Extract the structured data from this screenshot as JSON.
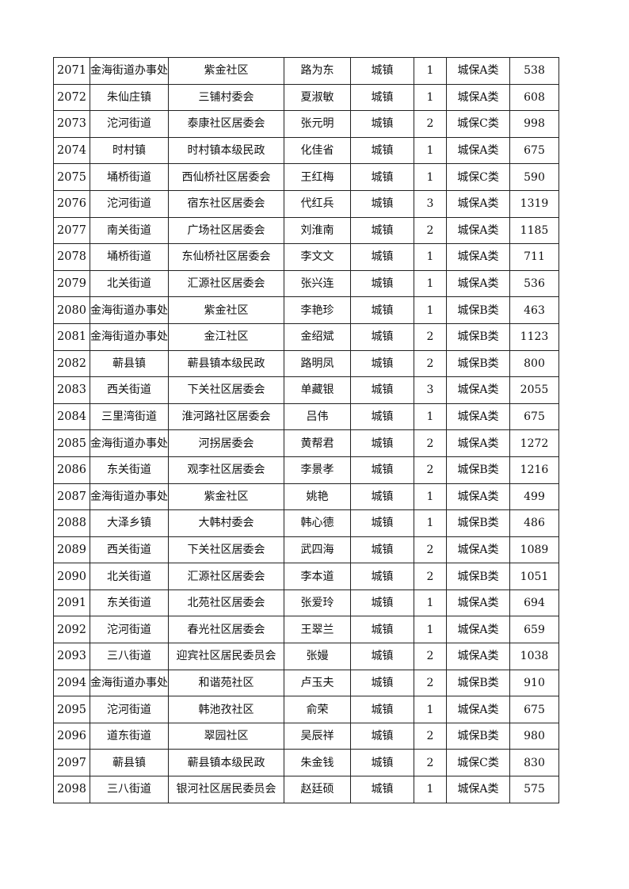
{
  "rows": [
    [
      "2071",
      "金海街道办事处",
      "紫金社区",
      "路为东",
      "城镇",
      "1",
      "城保A类",
      "538"
    ],
    [
      "2072",
      "朱仙庄镇",
      "三铺村委会",
      "夏淑敏",
      "城镇",
      "1",
      "城保A类",
      "608"
    ],
    [
      "2073",
      "沱河街道",
      "泰康社区居委会",
      "张元明",
      "城镇",
      "2",
      "城保C类",
      "998"
    ],
    [
      "2074",
      "时村镇",
      "时村镇本级民政",
      "化佳省",
      "城镇",
      "1",
      "城保A类",
      "675"
    ],
    [
      "2075",
      "埇桥街道",
      "西仙桥社区居委会",
      "王红梅",
      "城镇",
      "1",
      "城保C类",
      "590"
    ],
    [
      "2076",
      "沱河街道",
      "宿东社区居委会",
      "代红兵",
      "城镇",
      "3",
      "城保A类",
      "1319"
    ],
    [
      "2077",
      "南关街道",
      "广场社区居委会",
      "刘淮南",
      "城镇",
      "2",
      "城保A类",
      "1185"
    ],
    [
      "2078",
      "埇桥街道",
      "东仙桥社区居委会",
      "李文文",
      "城镇",
      "1",
      "城保A类",
      "711"
    ],
    [
      "2079",
      "北关街道",
      "汇源社区居委会",
      "张兴连",
      "城镇",
      "1",
      "城保A类",
      "536"
    ],
    [
      "2080",
      "金海街道办事处",
      "紫金社区",
      "李艳珍",
      "城镇",
      "1",
      "城保B类",
      "463"
    ],
    [
      "2081",
      "金海街道办事处",
      "金江社区",
      "金绍斌",
      "城镇",
      "2",
      "城保B类",
      "1123"
    ],
    [
      "2082",
      "蕲县镇",
      "蕲县镇本级民政",
      "路明凤",
      "城镇",
      "2",
      "城保B类",
      "800"
    ],
    [
      "2083",
      "西关街道",
      "下关社区居委会",
      "单藏银",
      "城镇",
      "3",
      "城保A类",
      "2055"
    ],
    [
      "2084",
      "三里湾街道",
      "淮河路社区居委会",
      "吕伟",
      "城镇",
      "1",
      "城保A类",
      "675"
    ],
    [
      "2085",
      "金海街道办事处",
      "河拐居委会",
      "黄帮君",
      "城镇",
      "2",
      "城保A类",
      "1272"
    ],
    [
      "2086",
      "东关街道",
      "观李社区居委会",
      "李景孝",
      "城镇",
      "2",
      "城保B类",
      "1216"
    ],
    [
      "2087",
      "金海街道办事处",
      "紫金社区",
      "姚艳",
      "城镇",
      "1",
      "城保A类",
      "499"
    ],
    [
      "2088",
      "大泽乡镇",
      "大韩村委会",
      "韩心德",
      "城镇",
      "1",
      "城保B类",
      "486"
    ],
    [
      "2089",
      "西关街道",
      "下关社区居委会",
      "武四海",
      "城镇",
      "2",
      "城保A类",
      "1089"
    ],
    [
      "2090",
      "北关街道",
      "汇源社区居委会",
      "李本道",
      "城镇",
      "2",
      "城保B类",
      "1051"
    ],
    [
      "2091",
      "东关街道",
      "北苑社区居委会",
      "张爱玲",
      "城镇",
      "1",
      "城保A类",
      "694"
    ],
    [
      "2092",
      "沱河街道",
      "春光社区居委会",
      "王翠兰",
      "城镇",
      "1",
      "城保A类",
      "659"
    ],
    [
      "2093",
      "三八街道",
      "迎宾社区居民委员会",
      "张嫚",
      "城镇",
      "2",
      "城保A类",
      "1038"
    ],
    [
      "2094",
      "金海街道办事处",
      "和谐苑社区",
      "卢玉夫",
      "城镇",
      "2",
      "城保B类",
      "910"
    ],
    [
      "2095",
      "沱河街道",
      "韩池孜社区",
      "俞荣",
      "城镇",
      "1",
      "城保A类",
      "675"
    ],
    [
      "2096",
      "道东街道",
      "翠园社区",
      "吴辰祥",
      "城镇",
      "2",
      "城保B类",
      "980"
    ],
    [
      "2097",
      "蕲县镇",
      "蕲县镇本级民政",
      "朱金钱",
      "城镇",
      "2",
      "城保C类",
      "830"
    ],
    [
      "2098",
      "三八街道",
      "银河社区居民委员会",
      "赵廷硕",
      "城镇",
      "1",
      "城保A类",
      "575"
    ]
  ]
}
